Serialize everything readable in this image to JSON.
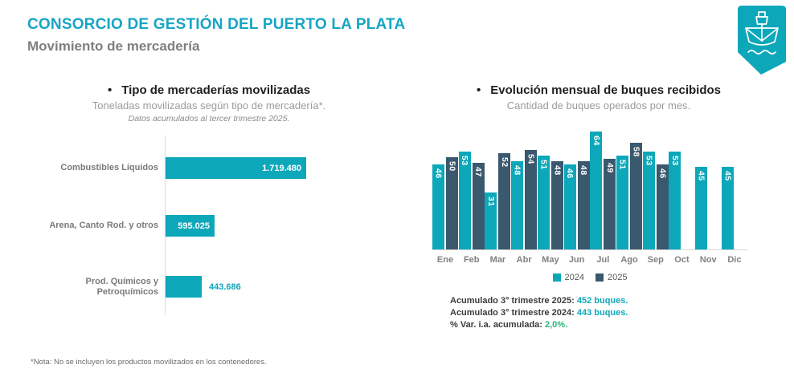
{
  "header": {
    "title": "CONSORCIO DE GESTIÓN DEL PUERTO LA PLATA",
    "subtitle": "Movimiento de mercadería"
  },
  "colors": {
    "teal": "#0da7ba",
    "navy": "#3a586e",
    "title_teal": "#17a5c5",
    "green": "#27b376",
    "axis_gray": "#d9d9d9"
  },
  "chart_data": [
    {
      "type": "bar",
      "orientation": "horizontal",
      "title": "Tipo de mercaderías movilizadas",
      "subtitle": "Toneladas movilizadas según tipo de mercadería*.",
      "note": "Datos acumulados al tercer trimestre 2025.",
      "categories": [
        "Combustibles Líquidos",
        "Arena, Canto Rod. y otros",
        "Prod. Químicos y Petroquímicos"
      ],
      "values": [
        1719480,
        595025,
        443686
      ],
      "value_labels": [
        "1.719.480",
        "595.025",
        "443.686"
      ],
      "label_placement": [
        "inside",
        "inside",
        "outside"
      ],
      "xlim": [
        0,
        1800000
      ],
      "grid": false
    },
    {
      "type": "bar",
      "orientation": "vertical",
      "title": "Evolución mensual de buques recibidos",
      "subtitle": "Cantidad de buques operados por mes.",
      "categories": [
        "Ene",
        "Feb",
        "Mar",
        "Abr",
        "May",
        "Jun",
        "Jul",
        "Ago",
        "Sep",
        "Oct",
        "Nov",
        "Dic"
      ],
      "series": [
        {
          "name": "2024",
          "color_key": "teal",
          "values": [
            46,
            53,
            31,
            48,
            51,
            46,
            64,
            51,
            53,
            53,
            45,
            45
          ]
        },
        {
          "name": "2025",
          "color_key": "navy",
          "values": [
            50,
            47,
            52,
            54,
            48,
            48,
            49,
            58,
            46,
            null,
            null,
            null
          ]
        }
      ],
      "ylim": [
        0,
        65
      ],
      "legend_position": "bottom",
      "grid": false
    }
  ],
  "summary": {
    "lines": [
      {
        "label": "Acumulado 3° trimestre 2025: ",
        "value": "452 buques.",
        "value_color": "teal"
      },
      {
        "label": "Acumulado 3° trimestre 2024: ",
        "value": "443 buques.",
        "value_color": "teal"
      },
      {
        "label": "% Var. i.a. acumulada: ",
        "value": "2,0%.",
        "value_color": "green"
      }
    ]
  },
  "footnote": "*Nota: No se incluyen los productos movilizados en los contenedores.",
  "logo": {
    "icon": "ship-icon"
  }
}
